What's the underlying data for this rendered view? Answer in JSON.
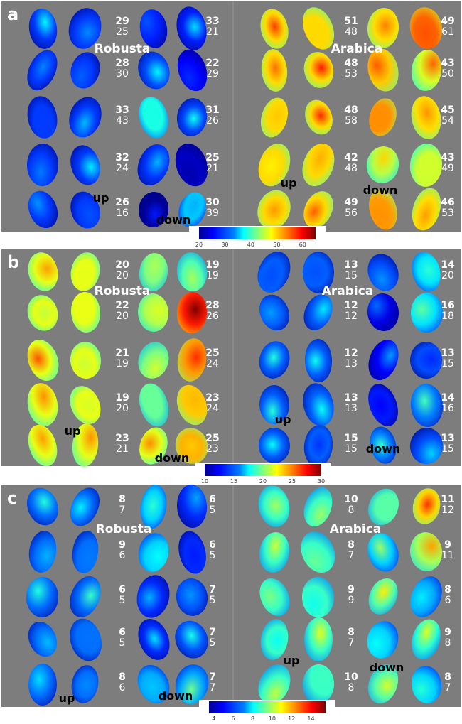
{
  "panels": [
    {
      "letter": "a",
      "robusta_label": "Robusta",
      "arabica_label": "Arabica",
      "up_label": "up",
      "down_label": "down",
      "colorbar": {
        "ticks": [
          "20",
          "30",
          "40",
          "50",
          "60"
        ],
        "range": [
          20,
          65
        ]
      },
      "robusta": {
        "down1": [
          [
            "29",
            "25"
          ],
          [
            "28",
            "30"
          ],
          [
            "33",
            "43"
          ],
          [
            "32",
            "24"
          ],
          [
            "26",
            "16"
          ]
        ],
        "down2": [
          [
            "33",
            "21"
          ],
          [
            "22",
            "29"
          ],
          [
            "31",
            "26"
          ],
          [
            "25",
            "21"
          ],
          [
            "30",
            "39"
          ]
        ]
      },
      "arabica": {
        "down1": [
          [
            "51",
            "48"
          ],
          [
            "48",
            "53"
          ],
          [
            "48",
            "58"
          ],
          [
            "42",
            "48"
          ],
          [
            "49",
            "56"
          ]
        ],
        "down2": [
          [
            "49",
            "61"
          ],
          [
            "43",
            "50"
          ],
          [
            "45",
            "54"
          ],
          [
            "43",
            "49"
          ],
          [
            "46",
            "53"
          ]
        ]
      }
    },
    {
      "letter": "b",
      "robusta_label": "Robusta",
      "arabica_label": "Arabica",
      "up_label": "up",
      "down_label": "down",
      "colorbar": {
        "ticks": [
          "10",
          "15",
          "20",
          "25",
          "30"
        ],
        "range": [
          10,
          30
        ]
      },
      "robusta": {
        "down1": [
          [
            "20",
            "20"
          ],
          [
            "22",
            "20"
          ],
          [
            "21",
            "19"
          ],
          [
            "19",
            "20"
          ],
          [
            "23",
            "21"
          ]
        ],
        "down2": [
          [
            "19",
            "19"
          ],
          [
            "28",
            "26"
          ],
          [
            "25",
            "24"
          ],
          [
            "23",
            "24"
          ],
          [
            "25",
            "23"
          ]
        ]
      },
      "arabica": {
        "down1": [
          [
            "13",
            "15"
          ],
          [
            "12",
            "12"
          ],
          [
            "12",
            "13"
          ],
          [
            "13",
            "13"
          ],
          [
            "15",
            "15"
          ]
        ],
        "down2": [
          [
            "14",
            "20"
          ],
          [
            "16",
            "18"
          ],
          [
            "13",
            "15"
          ],
          [
            "14",
            "16"
          ],
          [
            "13",
            "15"
          ]
        ]
      }
    },
    {
      "letter": "c",
      "robusta_label": "Robusta",
      "arabica_label": "Arabica",
      "up_label": "up",
      "down_label": "down",
      "colorbar": {
        "ticks": [
          "4",
          "6",
          "8",
          "10",
          "12",
          "14"
        ],
        "range": [
          3.5,
          15.5
        ]
      },
      "robusta": {
        "down1": [
          [
            "8",
            "7"
          ],
          [
            "9",
            "6"
          ],
          [
            "6",
            "5"
          ],
          [
            "6",
            "5"
          ],
          [
            "8",
            "6"
          ]
        ],
        "down2": [
          [
            "6",
            "5"
          ],
          [
            "6",
            "5"
          ],
          [
            "7",
            "5"
          ],
          [
            "7",
            "5"
          ],
          [
            "7",
            "7"
          ]
        ]
      },
      "arabica": {
        "down1": [
          [
            "10",
            "8"
          ],
          [
            "8",
            "7"
          ],
          [
            "9",
            "9"
          ],
          [
            "8",
            "7"
          ],
          [
            "10",
            "8"
          ]
        ],
        "down2": [
          [
            "11",
            "12"
          ],
          [
            "9",
            "11"
          ],
          [
            "8",
            "6"
          ],
          [
            "9",
            "8"
          ],
          [
            "8",
            "7"
          ]
        ]
      }
    }
  ]
}
